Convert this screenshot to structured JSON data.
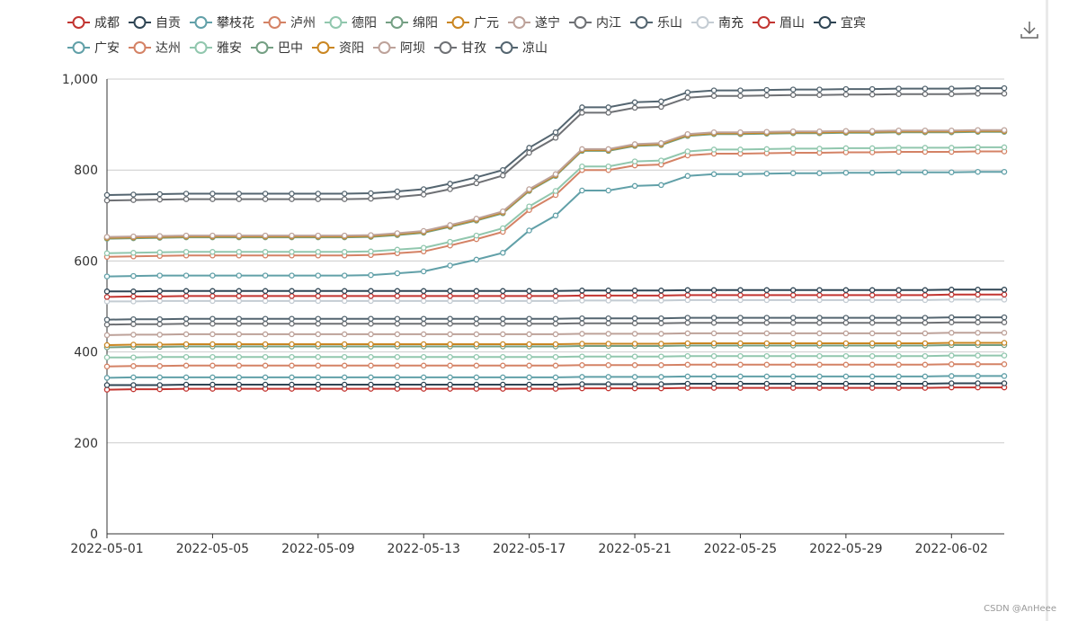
{
  "toolbox": {
    "icon": "download-icon"
  },
  "watermark": "CSDN @AnHeee",
  "chart_data": {
    "type": "line",
    "title": "",
    "xlabel": "",
    "ylabel": "",
    "ylim": [
      0,
      1000
    ],
    "yticks": [
      0,
      200,
      400,
      600,
      800,
      1000
    ],
    "ytick_labels": [
      "0",
      "200",
      "400",
      "600",
      "800",
      "1,000"
    ],
    "grid": "horizontal",
    "legend_position": "top",
    "x": [
      "2022-05-01",
      "2022-05-02",
      "2022-05-03",
      "2022-05-04",
      "2022-05-05",
      "2022-05-06",
      "2022-05-07",
      "2022-05-08",
      "2022-05-09",
      "2022-05-10",
      "2022-05-11",
      "2022-05-12",
      "2022-05-13",
      "2022-05-14",
      "2022-05-15",
      "2022-05-16",
      "2022-05-17",
      "2022-05-18",
      "2022-05-19",
      "2022-05-20",
      "2022-05-21",
      "2022-05-22",
      "2022-05-23",
      "2022-05-24",
      "2022-05-25",
      "2022-05-26",
      "2022-05-27",
      "2022-05-28",
      "2022-05-29",
      "2022-05-30",
      "2022-05-31",
      "2022-06-01",
      "2022-06-02",
      "2022-06-03",
      "2022-06-04"
    ],
    "xtick_labels": [
      "2022-05-01",
      "2022-05-05",
      "2022-05-09",
      "2022-05-13",
      "2022-05-17",
      "2022-05-21",
      "2022-05-25",
      "2022-05-29",
      "2022-06-02"
    ],
    "series": [
      {
        "name": "成都",
        "color": "#c23531",
        "values": [
          317,
          318,
          318,
          319,
          319,
          319,
          319,
          319,
          319,
          319,
          319,
          319,
          319,
          319,
          319,
          319,
          319,
          319,
          320,
          320,
          320,
          320,
          321,
          321,
          321,
          321,
          321,
          321,
          321,
          321,
          321,
          321,
          322,
          322,
          322
        ]
      },
      {
        "name": "自贡",
        "color": "#2f4554",
        "values": [
          327,
          327,
          327,
          328,
          328,
          328,
          328,
          328,
          328,
          328,
          328,
          328,
          328,
          328,
          328,
          328,
          328,
          328,
          329,
          329,
          329,
          329,
          330,
          330,
          330,
          330,
          330,
          330,
          330,
          330,
          330,
          330,
          331,
          331,
          331
        ]
      },
      {
        "name": "攀枝花",
        "color": "#61a0a8",
        "values": [
          343,
          344,
          344,
          344,
          344,
          344,
          344,
          344,
          344,
          344,
          344,
          344,
          344,
          344,
          344,
          344,
          344,
          344,
          345,
          345,
          345,
          345,
          346,
          346,
          346,
          346,
          346,
          346,
          346,
          346,
          346,
          346,
          347,
          347,
          347
        ]
      },
      {
        "name": "泸州",
        "color": "#d48265",
        "values": [
          368,
          369,
          369,
          370,
          370,
          370,
          370,
          370,
          370,
          370,
          370,
          370,
          370,
          370,
          370,
          370,
          370,
          370,
          371,
          371,
          371,
          371,
          372,
          372,
          372,
          372,
          372,
          372,
          372,
          372,
          372,
          372,
          373,
          373,
          373
        ]
      },
      {
        "name": "德阳",
        "color": "#91c7ae",
        "values": [
          388,
          388,
          389,
          389,
          389,
          389,
          389,
          389,
          389,
          389,
          389,
          389,
          389,
          389,
          389,
          389,
          389,
          389,
          390,
          390,
          390,
          390,
          391,
          391,
          391,
          391,
          391,
          391,
          391,
          391,
          391,
          391,
          392,
          392,
          392
        ]
      },
      {
        "name": "绵阳",
        "color": "#749f83",
        "values": [
          410,
          411,
          411,
          412,
          412,
          412,
          412,
          412,
          412,
          412,
          412,
          412,
          412,
          412,
          412,
          412,
          412,
          412,
          413,
          413,
          413,
          413,
          414,
          414,
          414,
          414,
          414,
          414,
          414,
          414,
          414,
          414,
          415,
          415,
          415
        ]
      },
      {
        "name": "广元",
        "color": "#ca8622",
        "values": [
          415,
          416,
          416,
          417,
          417,
          417,
          417,
          417,
          417,
          417,
          417,
          417,
          417,
          417,
          417,
          417,
          417,
          417,
          418,
          418,
          418,
          418,
          419,
          419,
          419,
          419,
          419,
          419,
          419,
          419,
          419,
          419,
          420,
          420,
          420
        ]
      },
      {
        "name": "遂宁",
        "color": "#bda29a",
        "values": [
          437,
          438,
          438,
          439,
          439,
          439,
          439,
          439,
          439,
          439,
          439,
          439,
          439,
          439,
          439,
          439,
          439,
          439,
          440,
          440,
          440,
          440,
          441,
          441,
          441,
          441,
          441,
          441,
          441,
          441,
          441,
          441,
          442,
          442,
          442
        ]
      },
      {
        "name": "内江",
        "color": "#6e7074",
        "values": [
          460,
          461,
          461,
          462,
          462,
          462,
          462,
          462,
          462,
          462,
          462,
          462,
          462,
          462,
          462,
          462,
          462,
          462,
          463,
          463,
          463,
          463,
          464,
          464,
          464,
          464,
          464,
          464,
          464,
          464,
          464,
          464,
          465,
          465,
          465
        ]
      },
      {
        "name": "乐山",
        "color": "#546570",
        "values": [
          471,
          472,
          472,
          473,
          473,
          473,
          473,
          473,
          473,
          473,
          473,
          473,
          473,
          473,
          473,
          473,
          473,
          473,
          474,
          474,
          474,
          474,
          475,
          475,
          475,
          475,
          475,
          475,
          475,
          475,
          475,
          475,
          476,
          476,
          476
        ]
      },
      {
        "name": "南充",
        "color": "#c4ccd3",
        "values": [
          511,
          511,
          512,
          512,
          512,
          512,
          512,
          512,
          512,
          512,
          512,
          512,
          512,
          512,
          512,
          512,
          512,
          512,
          513,
          513,
          513,
          513,
          514,
          514,
          514,
          514,
          514,
          514,
          514,
          514,
          514,
          514,
          515,
          515,
          515
        ]
      },
      {
        "name": "眉山",
        "color": "#c23531",
        "values": [
          521,
          522,
          522,
          523,
          523,
          523,
          523,
          523,
          523,
          523,
          523,
          523,
          523,
          523,
          523,
          523,
          523,
          523,
          524,
          524,
          524,
          524,
          525,
          525,
          525,
          525,
          525,
          525,
          525,
          525,
          525,
          525,
          526,
          526,
          526
        ]
      },
      {
        "name": "宜宾",
        "color": "#2f4554",
        "values": [
          533,
          533,
          534,
          534,
          534,
          534,
          534,
          534,
          534,
          534,
          534,
          534,
          534,
          534,
          534,
          534,
          534,
          534,
          535,
          535,
          535,
          535,
          536,
          536,
          536,
          536,
          536,
          536,
          536,
          536,
          536,
          536,
          537,
          537,
          537
        ]
      },
      {
        "name": "广安",
        "color": "#61a0a8",
        "values": [
          566,
          567,
          568,
          568,
          568,
          568,
          568,
          568,
          568,
          568,
          569,
          573,
          577,
          590,
          603,
          618,
          667,
          700,
          755,
          755,
          765,
          767,
          787,
          791,
          791,
          792,
          793,
          793,
          794,
          794,
          795,
          795,
          795,
          796,
          796
        ]
      },
      {
        "name": "达州",
        "color": "#d48265",
        "values": [
          609,
          610,
          611,
          612,
          612,
          612,
          612,
          612,
          612,
          612,
          613,
          617,
          621,
          634,
          648,
          664,
          712,
          745,
          800,
          800,
          810,
          812,
          832,
          836,
          836,
          837,
          838,
          838,
          839,
          839,
          840,
          840,
          840,
          841,
          841
        ]
      },
      {
        "name": "雅安",
        "color": "#91c7ae",
        "values": [
          617,
          618,
          619,
          620,
          620,
          620,
          620,
          620,
          620,
          620,
          621,
          625,
          629,
          642,
          656,
          672,
          720,
          754,
          808,
          808,
          819,
          821,
          841,
          845,
          845,
          846,
          847,
          847,
          848,
          848,
          849,
          849,
          849,
          850,
          850
        ]
      },
      {
        "name": "巴中",
        "color": "#749f83",
        "values": [
          649,
          650,
          651,
          652,
          652,
          652,
          652,
          652,
          652,
          652,
          653,
          657,
          662,
          675,
          689,
          705,
          754,
          787,
          842,
          842,
          853,
          855,
          875,
          879,
          879,
          880,
          881,
          881,
          882,
          882,
          883,
          883,
          883,
          884,
          884
        ]
      },
      {
        "name": "资阳",
        "color": "#ca8622",
        "values": [
          651,
          652,
          653,
          654,
          654,
          654,
          654,
          654,
          654,
          654,
          655,
          659,
          664,
          677,
          691,
          707,
          756,
          789,
          844,
          844,
          855,
          857,
          877,
          881,
          881,
          882,
          883,
          883,
          884,
          884,
          885,
          885,
          885,
          886,
          886
        ]
      },
      {
        "name": "阿坝",
        "color": "#bda29a",
        "values": [
          653,
          654,
          655,
          656,
          656,
          656,
          656,
          656,
          656,
          656,
          657,
          661,
          666,
          679,
          693,
          709,
          758,
          791,
          846,
          846,
          857,
          859,
          879,
          883,
          883,
          884,
          885,
          885,
          886,
          886,
          887,
          887,
          887,
          888,
          888
        ]
      },
      {
        "name": "甘孜",
        "color": "#6e7074",
        "values": [
          733,
          734,
          735,
          736,
          736,
          736,
          736,
          736,
          736,
          736,
          737,
          741,
          746,
          758,
          771,
          788,
          838,
          871,
          926,
          926,
          937,
          939,
          959,
          963,
          963,
          964,
          965,
          965,
          966,
          966,
          967,
          967,
          967,
          968,
          968
        ]
      },
      {
        "name": "凉山",
        "color": "#546570",
        "values": [
          745,
          746,
          747,
          748,
          748,
          748,
          748,
          748,
          748,
          748,
          749,
          753,
          758,
          770,
          784,
          800,
          849,
          883,
          938,
          938,
          949,
          951,
          971,
          975,
          975,
          976,
          977,
          977,
          978,
          978,
          979,
          979,
          979,
          980,
          980
        ]
      }
    ]
  }
}
